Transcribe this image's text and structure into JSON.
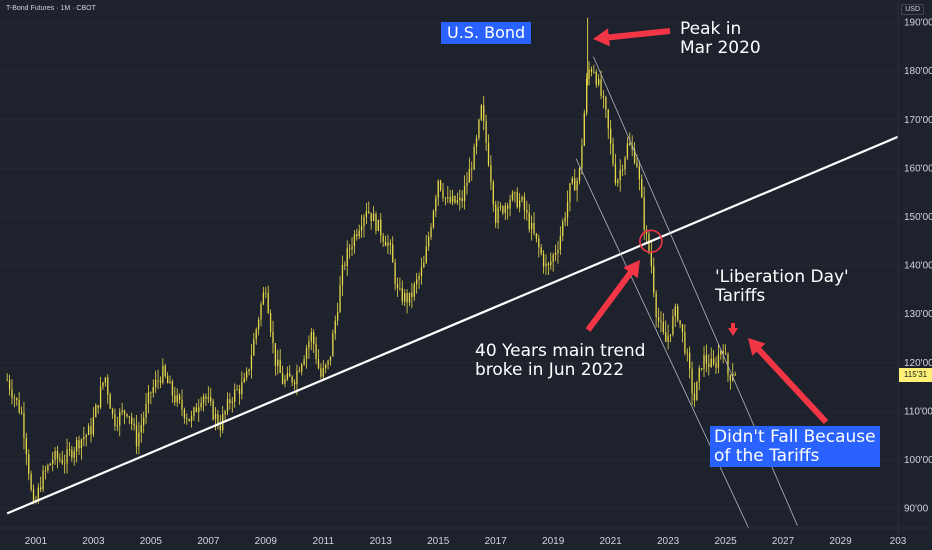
{
  "header": {
    "instrument": "T-Bond Futures · 1M · CBOT",
    "currency": "USD"
  },
  "annotations": {
    "title": "U.S. Bond",
    "peak": [
      "Peak in",
      "Mar 2020"
    ],
    "trend": [
      "40 Years main trend",
      "broke in Jun 2022"
    ],
    "liberation": [
      "'Liberation Day'",
      "Tariffs"
    ],
    "didnt_fall": [
      "Didn't Fall Because",
      "of the Tariffs"
    ]
  },
  "last_price_label": "115'31",
  "colors": {
    "background": "#1e222d",
    "candles": "#e6d84a",
    "trendline": "#ffffff",
    "channel": "#b2b5be",
    "arrows": "#f23645",
    "label_box": "#2962ff",
    "last_price": "#fff176"
  },
  "chart_data": {
    "type": "candlestick",
    "interval": "1M",
    "title": "",
    "xlabel": "",
    "ylabel": "",
    "x_ticks": [
      "2001",
      "2003",
      "2005",
      "2007",
      "2009",
      "2011",
      "2013",
      "2015",
      "2017",
      "2019",
      "2021",
      "2023",
      "2025",
      "2027",
      "2029",
      "203"
    ],
    "y_ticks": [
      "90'00",
      "100'00",
      "110'00",
      "120'00",
      "130'00",
      "140'00",
      "150'00",
      "160'00",
      "170'00",
      "180'00",
      "190'00"
    ],
    "ylim": [
      86,
      193
    ],
    "xlim": [
      1999.75,
      2031.0
    ],
    "closes": [
      [
        2000.0,
        116.5
      ],
      [
        2000.5,
        109.5
      ],
      [
        2000.7,
        101.0
      ],
      [
        2000.9,
        89.5
      ],
      [
        2001.2,
        96.0
      ],
      [
        2001.6,
        100.5
      ],
      [
        2002.0,
        100.0
      ],
      [
        2002.5,
        104.0
      ],
      [
        2002.9,
        106.0
      ],
      [
        2003.4,
        117.5
      ],
      [
        2003.7,
        108.0
      ],
      [
        2004.2,
        110.5
      ],
      [
        2004.5,
        104.0
      ],
      [
        2005.0,
        114.0
      ],
      [
        2005.4,
        118.0
      ],
      [
        2005.8,
        113.0
      ],
      [
        2006.4,
        108.0
      ],
      [
        2006.8,
        114.0
      ],
      [
        2007.4,
        107.0
      ],
      [
        2007.8,
        113.0
      ],
      [
        2008.3,
        116.0
      ],
      [
        2008.8,
        131.0
      ],
      [
        2009.0,
        136.0
      ],
      [
        2009.3,
        121.0
      ],
      [
        2009.6,
        116.0
      ],
      [
        2010.0,
        117.0
      ],
      [
        2010.6,
        126.0
      ],
      [
        2010.9,
        117.0
      ],
      [
        2011.2,
        120.0
      ],
      [
        2011.7,
        140.0
      ],
      [
        2012.0,
        145.0
      ],
      [
        2012.5,
        152.0
      ],
      [
        2012.9,
        148.0
      ],
      [
        2013.3,
        144.0
      ],
      [
        2013.6,
        134.0
      ],
      [
        2014.0,
        133.0
      ],
      [
        2014.5,
        140.0
      ],
      [
        2015.0,
        158.0
      ],
      [
        2015.3,
        153.0
      ],
      [
        2015.8,
        153.0
      ],
      [
        2016.3,
        164.0
      ],
      [
        2016.5,
        172.0
      ],
      [
        2016.8,
        160.0
      ],
      [
        2017.0,
        150.0
      ],
      [
        2017.5,
        154.0
      ],
      [
        2017.9,
        153.0
      ],
      [
        2018.4,
        145.0
      ],
      [
        2018.8,
        139.0
      ],
      [
        2019.2,
        145.0
      ],
      [
        2019.6,
        156.0
      ],
      [
        2019.9,
        158.0
      ],
      [
        2020.2,
        180.0
      ],
      [
        2020.4,
        181.0
      ],
      [
        2020.8,
        172.0
      ],
      [
        2021.2,
        157.0
      ],
      [
        2021.6,
        165.0
      ],
      [
        2021.9,
        162.0
      ],
      [
        2022.2,
        147.0
      ],
      [
        2022.4,
        141.0
      ],
      [
        2022.6,
        130.0
      ],
      [
        2022.9,
        124.0
      ],
      [
        2023.3,
        131.0
      ],
      [
        2023.6,
        123.0
      ],
      [
        2023.9,
        112.0
      ],
      [
        2024.2,
        121.0
      ],
      [
        2024.6,
        119.0
      ],
      [
        2024.9,
        124.0
      ],
      [
        2025.1,
        117.0
      ],
      [
        2025.3,
        119.0
      ],
      [
        2025.4,
        116.0
      ]
    ],
    "peak": {
      "x": 2020.2,
      "y": 191.0
    },
    "overlays": {
      "trend_line": {
        "from": [
          2000.0,
          89.0
        ],
        "to": [
          2031.0,
          166.5
        ]
      },
      "channel": [
        {
          "from": [
            2020.4,
            183.0
          ],
          "to": [
            2027.5,
            86.5
          ]
        },
        {
          "from": [
            2019.8,
            162.0
          ],
          "to": [
            2025.8,
            86.0
          ]
        }
      ],
      "break_marker": {
        "x": 2022.4,
        "y": 145.0
      }
    }
  }
}
